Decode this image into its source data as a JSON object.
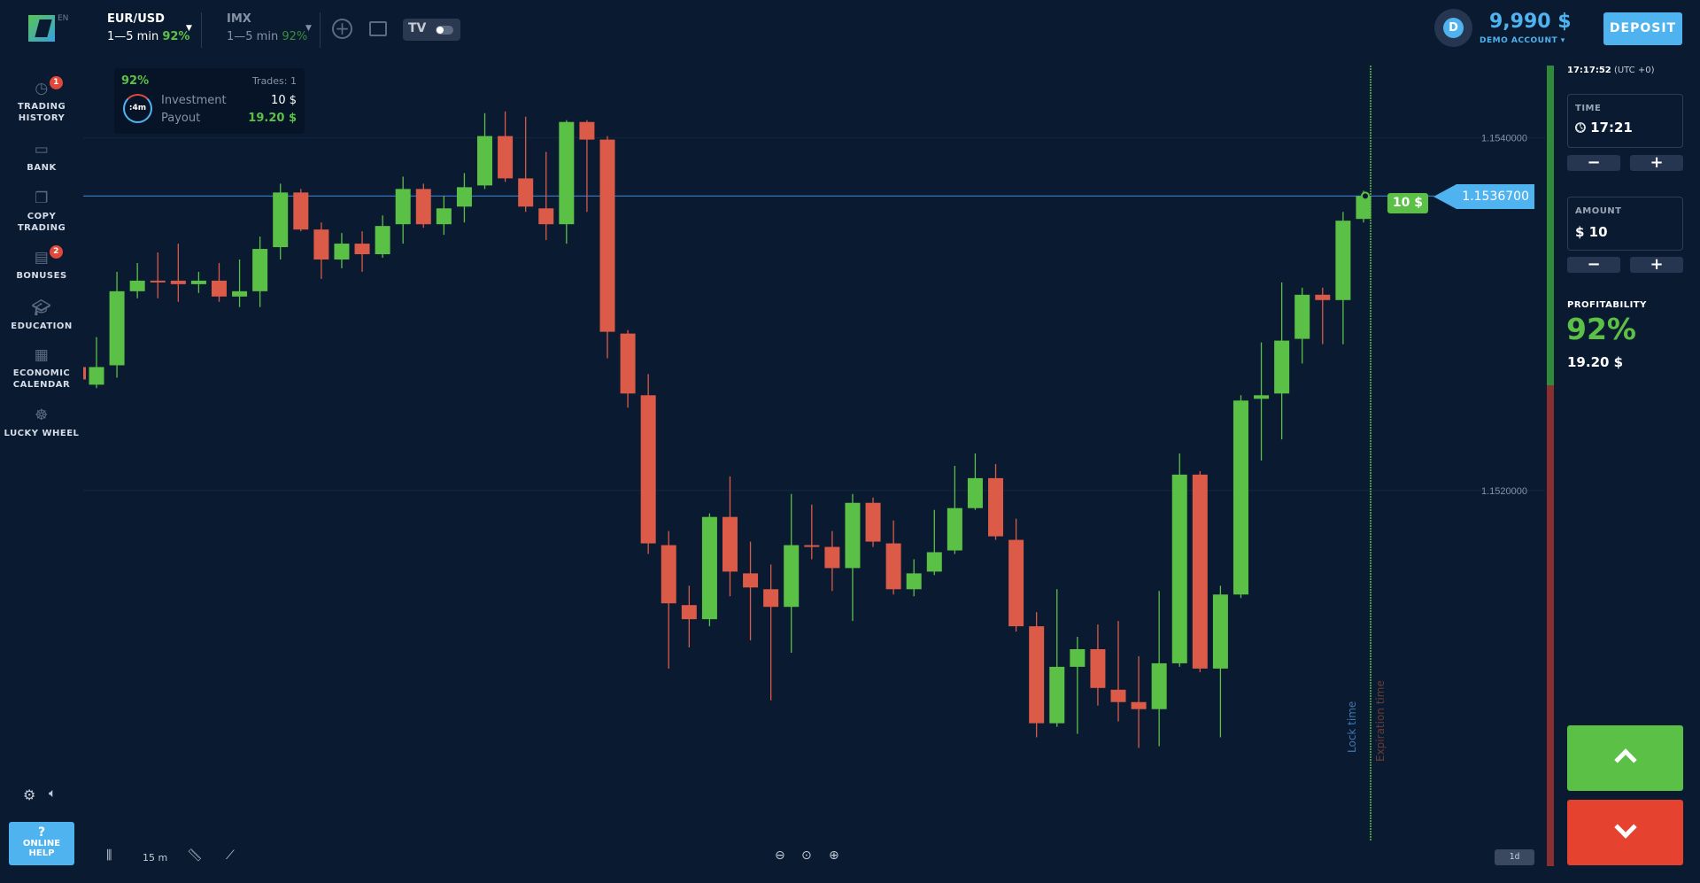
{
  "header": {
    "lang": "EN",
    "assets": [
      {
        "name": "EUR/USD",
        "range": "1—5 min",
        "payout": "92%"
      },
      {
        "name": "IMX",
        "range": "1—5 min",
        "payout": "92%"
      }
    ],
    "balance": "9,990 $",
    "account_type": "DEMO ACCOUNT",
    "avatar_letter": "D",
    "deposit_label": "DEPOSIT",
    "tv_logo": "TV"
  },
  "sidebar": {
    "items": [
      {
        "label1": "TRADING",
        "label2": "HISTORY",
        "icon": "history-icon",
        "badge": "1"
      },
      {
        "label1": "BANK",
        "label2": "",
        "icon": "wallet-icon"
      },
      {
        "label1": "COPY",
        "label2": "TRADING",
        "icon": "copy-trading-icon"
      },
      {
        "label1": "BONUSES",
        "label2": "",
        "icon": "bonus-icon",
        "badge": "2"
      },
      {
        "label1": "EDUCATION",
        "label2": "",
        "icon": "graduation-cap-icon"
      },
      {
        "label1": "ECONOMIC",
        "label2": "CALENDAR",
        "icon": "calendar-icon"
      },
      {
        "label1": "LUCKY WHEEL",
        "label2": "",
        "icon": "ferris-wheel-icon"
      }
    ],
    "help_mark": "?",
    "help_label1": "ONLINE",
    "help_label2": "HELP"
  },
  "trade_card": {
    "percent": "92%",
    "trades": "Trades: 1",
    "timer": ":4m",
    "investment_label": "Investment",
    "investment": "10 $",
    "payout_label": "Payout",
    "payout": "19.20 $"
  },
  "chart": {
    "current_price": "1.1536700",
    "trade_tag": "10 $",
    "lock_label": "Lock time",
    "expiration_label": "Expiration time",
    "timeframe": "15 m",
    "period": "1d"
  },
  "panel": {
    "clock": "17:17:52",
    "tz": "(UTC +0)",
    "time_label": "TIME",
    "time": "17:21",
    "amount_label": "AMOUNT",
    "amount": "$ 10",
    "profit_label": "PROFITABILITY",
    "profit_pct": "92%",
    "profit_value": "19.20 $",
    "minus": "−",
    "plus": "+"
  },
  "colors": {
    "up": "#5bc146",
    "down": "#db5a48",
    "accent": "#4fb3ef",
    "bg": "#0a1a31"
  },
  "chart_data": {
    "type": "candlestick",
    "ylim": [
      1.15001,
      1.15441
    ],
    "yticks": [
      "1.1540000",
      "1.1520000"
    ],
    "ytick_values": [
      1.154,
      1.152
    ],
    "grid": true,
    "candles": [
      [
        1.1526,
        1.15287,
        1.15258,
        1.1527
      ],
      [
        1.15271,
        1.15324,
        1.15264,
        1.15313
      ],
      [
        1.15313,
        1.15329,
        1.15309,
        1.15319
      ],
      [
        1.15319,
        1.15335,
        1.15309,
        1.15318
      ],
      [
        1.15319,
        1.1534,
        1.15307,
        1.15317
      ],
      [
        1.15317,
        1.15324,
        1.15312,
        1.15319
      ],
      [
        1.15319,
        1.15329,
        1.15307,
        1.1531
      ],
      [
        1.1531,
        1.15331,
        1.15304,
        1.15313
      ],
      [
        1.15313,
        1.15344,
        1.15304,
        1.15337
      ],
      [
        1.15338,
        1.15374,
        1.15331,
        1.15369
      ],
      [
        1.15369,
        1.15371,
        1.15347,
        1.15348
      ],
      [
        1.15348,
        1.15352,
        1.1532,
        1.15331
      ],
      [
        1.15331,
        1.15346,
        1.15326,
        1.1534
      ],
      [
        1.1534,
        1.15347,
        1.15324,
        1.15334
      ],
      [
        1.15334,
        1.15356,
        1.15332,
        1.1535
      ],
      [
        1.15351,
        1.15378,
        1.1534,
        1.15371
      ],
      [
        1.15371,
        1.15374,
        1.15349,
        1.15351
      ],
      [
        1.15351,
        1.15367,
        1.15345,
        1.1536
      ],
      [
        1.15361,
        1.1538,
        1.15352,
        1.15372
      ],
      [
        1.15373,
        1.15414,
        1.15371,
        1.15401
      ],
      [
        1.15401,
        1.15415,
        1.15375,
        1.15377
      ],
      [
        1.15377,
        1.15412,
        1.15358,
        1.15361
      ],
      [
        1.1536,
        1.15392,
        1.15342,
        1.15351
      ],
      [
        1.15351,
        1.1541,
        1.1534,
        1.15409
      ],
      [
        1.15409,
        1.1541,
        1.15358,
        1.15399
      ],
      [
        1.15399,
        1.15401,
        1.15275,
        1.1529
      ],
      [
        1.15289,
        1.15291,
        1.15247,
        1.15255
      ],
      [
        1.15254,
        1.15266,
        1.15164,
        1.1517
      ],
      [
        1.15169,
        1.15177,
        1.15099,
        1.15136
      ],
      [
        1.15135,
        1.15146,
        1.15111,
        1.15127
      ],
      [
        1.15127,
        1.15187,
        1.15123,
        1.15185
      ],
      [
        1.15185,
        1.15208,
        1.1514,
        1.15154
      ],
      [
        1.15153,
        1.15171,
        1.15115,
        1.15145
      ],
      [
        1.15144,
        1.15158,
        1.15081,
        1.15134
      ],
      [
        1.15134,
        1.15198,
        1.15108,
        1.15169
      ],
      [
        1.15169,
        1.15192,
        1.15161,
        1.15168
      ],
      [
        1.15168,
        1.15177,
        1.15143,
        1.15156
      ],
      [
        1.15156,
        1.15198,
        1.15126,
        1.15193
      ],
      [
        1.15193,
        1.15196,
        1.15168,
        1.15171
      ],
      [
        1.1517,
        1.15183,
        1.15141,
        1.15144
      ],
      [
        1.15144,
        1.15161,
        1.1514,
        1.15153
      ],
      [
        1.15154,
        1.15189,
        1.15152,
        1.15165
      ],
      [
        1.15166,
        1.15214,
        1.15164,
        1.1519
      ],
      [
        1.1519,
        1.15221,
        1.15189,
        1.15207
      ],
      [
        1.15207,
        1.15215,
        1.15172,
        1.15174
      ],
      [
        1.15172,
        1.15184,
        1.1512,
        1.15123
      ],
      [
        1.15123,
        1.15131,
        1.1506,
        1.15068
      ],
      [
        1.15068,
        1.15144,
        1.15066,
        1.151
      ],
      [
        1.151,
        1.15117,
        1.15062,
        1.1511
      ],
      [
        1.1511,
        1.15124,
        1.15078,
        1.15088
      ],
      [
        1.15087,
        1.15126,
        1.15069,
        1.1508
      ],
      [
        1.1508,
        1.15106,
        1.15054,
        1.15076
      ],
      [
        1.15076,
        1.15143,
        1.15055,
        1.15102
      ],
      [
        1.15102,
        1.15221,
        1.151,
        1.15209
      ],
      [
        1.15209,
        1.15211,
        1.15097,
        1.15099
      ],
      [
        1.15099,
        1.15146,
        1.1506,
        1.15141
      ],
      [
        1.15141,
        1.15254,
        1.15139,
        1.15251
      ],
      [
        1.15252,
        1.15284,
        1.15217,
        1.15254
      ],
      [
        1.15255,
        1.15318,
        1.15229,
        1.15285
      ],
      [
        1.15286,
        1.15315,
        1.15272,
        1.15311
      ],
      [
        1.15311,
        1.15315,
        1.15283,
        1.15308
      ],
      [
        1.15308,
        1.15358,
        1.15283,
        1.15353
      ],
      [
        1.15354,
        1.1537,
        1.15352,
        1.15367
      ]
    ],
    "candle_fields": [
      "open",
      "high",
      "low",
      "close"
    ],
    "current": 1.15367
  }
}
